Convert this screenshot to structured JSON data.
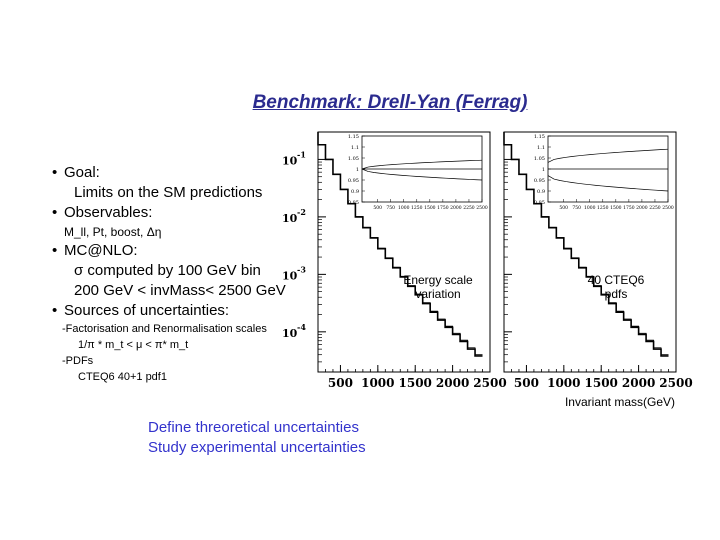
{
  "slide": {
    "title": "Benchmark: Drell-Yan (Ferrag)",
    "bullets": {
      "goal": "Goal:",
      "goal_sub": "Limits on the SM predictions",
      "observables": "Observables:",
      "observables_sub": "M_ll, Pt, boost, Δη",
      "mcnlo": "MC@NLO:",
      "mcnlo_sub1": "σ computed by 100 GeV bin",
      "mcnlo_sub2": "200 GeV < invMass< 2500 GeV",
      "sources": "Sources of uncertainties:",
      "fact": "-Factorisation and Renormalisation scales",
      "fact_sub": "1/π * m_t <  μ  < π* m_t",
      "pdfs": "-PDFs",
      "pdfs_sub": "CTEQ6 40+1 pdf1"
    },
    "footer": [
      "Define threoretical uncertainties",
      "Study experimental uncertainties"
    ]
  },
  "chart_data": [
    {
      "type": "line",
      "annotation": "Energy scale\nvariation",
      "xlabel": "",
      "ylabel": "",
      "y_scale": "log",
      "xlim": [
        200,
        2500
      ],
      "ylim": [
        2e-05,
        0.3
      ],
      "x_ticks": [
        "500",
        "1000",
        "1500",
        "2000",
        "2500"
      ],
      "y_ticks": [
        "10^-1",
        "10^-2",
        "10^-3",
        "10^-4"
      ],
      "bin_width": 100,
      "x": [
        200,
        300,
        400,
        500,
        600,
        700,
        800,
        900,
        1000,
        1100,
        1200,
        1300,
        1400,
        1500,
        1600,
        1700,
        1800,
        1900,
        2000,
        2100,
        2200,
        2300
      ],
      "values": [
        0.18,
        0.1,
        0.055,
        0.03,
        0.017,
        0.01,
        0.0065,
        0.0043,
        0.0028,
        0.0019,
        0.0013,
        0.0009,
        0.00062,
        0.00044,
        0.00031,
        0.00022,
        0.00016,
        0.00012,
        9e-05,
        6.8e-05,
        5e-05,
        3.8e-05
      ],
      "inset": {
        "type": "line",
        "x_ticks": [
          "500",
          "750",
          "1000",
          "1250",
          "1500",
          "1750",
          "2000",
          "2250",
          "2500"
        ],
        "y_ticks": [
          "1.15",
          "1.1",
          "1.05",
          "1",
          "0.95",
          "0.9",
          "0.85"
        ],
        "ylim": [
          0.85,
          1.15
        ],
        "x": [
          200,
          2500
        ],
        "series": [
          {
            "values": [
              1.0,
              1.04
            ]
          },
          {
            "values": [
              1.0,
              0.95
            ]
          },
          {
            "values": [
              1.0,
              1.0
            ]
          }
        ]
      }
    },
    {
      "type": "line",
      "annotation": "40 CTEQ6\npdfs",
      "xlabel": "Invariant mass(GeV)",
      "ylabel": "",
      "y_scale": "log",
      "xlim": [
        200,
        2500
      ],
      "ylim": [
        2e-05,
        0.3
      ],
      "x_ticks": [
        "500",
        "1000",
        "1500",
        "2000",
        "2500"
      ],
      "bin_width": 100,
      "x": [
        200,
        300,
        400,
        500,
        600,
        700,
        800,
        900,
        1000,
        1100,
        1200,
        1300,
        1400,
        1500,
        1600,
        1700,
        1800,
        1900,
        2000,
        2100,
        2200,
        2300
      ],
      "values": [
        0.18,
        0.1,
        0.055,
        0.03,
        0.017,
        0.01,
        0.0065,
        0.0043,
        0.0028,
        0.0019,
        0.0013,
        0.0009,
        0.00062,
        0.00044,
        0.00031,
        0.00022,
        0.00016,
        0.00012,
        9e-05,
        6.8e-05,
        5e-05,
        3.8e-05
      ],
      "inset": {
        "type": "line",
        "x_ticks": [
          "500",
          "750",
          "1000",
          "1250",
          "1500",
          "1750",
          "2000",
          "2250",
          "2500"
        ],
        "y_ticks": [
          "1.15",
          "1.1",
          "1.05",
          "1",
          "0.95",
          "0.9",
          "0.85"
        ],
        "ylim": [
          0.85,
          1.15
        ],
        "x": [
          200,
          2500
        ],
        "series": [
          {
            "values": [
              1.03,
              1.09
            ]
          },
          {
            "values": [
              0.97,
              0.9
            ]
          },
          {
            "values": [
              1.0,
              1.0
            ]
          }
        ]
      }
    }
  ]
}
